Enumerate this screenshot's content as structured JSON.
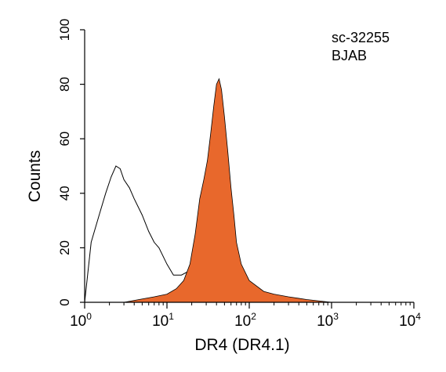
{
  "chart_data": {
    "type": "area",
    "xlabel": "DR4 (DR4.1)",
    "ylabel": "Counts",
    "xscale": "log",
    "xlim": [
      1,
      10000
    ],
    "ylim": [
      0,
      100
    ],
    "xticks": [
      {
        "base": "10",
        "exp": "0"
      },
      {
        "base": "10",
        "exp": "1"
      },
      {
        "base": "10",
        "exp": "2"
      },
      {
        "base": "10",
        "exp": "3"
      },
      {
        "base": "10",
        "exp": "4"
      }
    ],
    "yticks": [
      "0",
      "20",
      "40",
      "60",
      "80",
      "100"
    ],
    "annotations": [
      "sc-32255",
      "BJAB"
    ],
    "grid": false,
    "colors": {
      "filled": "#e8682c",
      "outline": "#000000"
    },
    "series": [
      {
        "style": "outline",
        "x": [
          1.0,
          1.2,
          1.5,
          1.8,
          2.1,
          2.4,
          2.7,
          3.0,
          3.5,
          4.0,
          5.0,
          6.0,
          7.0,
          8.0,
          10,
          12,
          15,
          20,
          25,
          30,
          40,
          50,
          60,
          70,
          80,
          100,
          150,
          200,
          300,
          500,
          1000
        ],
        "values": [
          0,
          22,
          32,
          40,
          46,
          50,
          49,
          45,
          42,
          38,
          32,
          26,
          22,
          20,
          14,
          10,
          10,
          12,
          13,
          12,
          11,
          9,
          7,
          5,
          4,
          2,
          2,
          2,
          1,
          0,
          0
        ]
      },
      {
        "style": "filled",
        "x": [
          1.0,
          3.0,
          7.0,
          10,
          13,
          16,
          19,
          22,
          25,
          28,
          31,
          34,
          37,
          40,
          43,
          46,
          50,
          55,
          60,
          65,
          70,
          80,
          100,
          150,
          200,
          300,
          500,
          1000
        ],
        "values": [
          0,
          0,
          2,
          3,
          5,
          8,
          14,
          25,
          38,
          45,
          52,
          62,
          72,
          80,
          82,
          78,
          68,
          55,
          42,
          32,
          22,
          14,
          8,
          4,
          3,
          2,
          1,
          0
        ]
      }
    ]
  }
}
